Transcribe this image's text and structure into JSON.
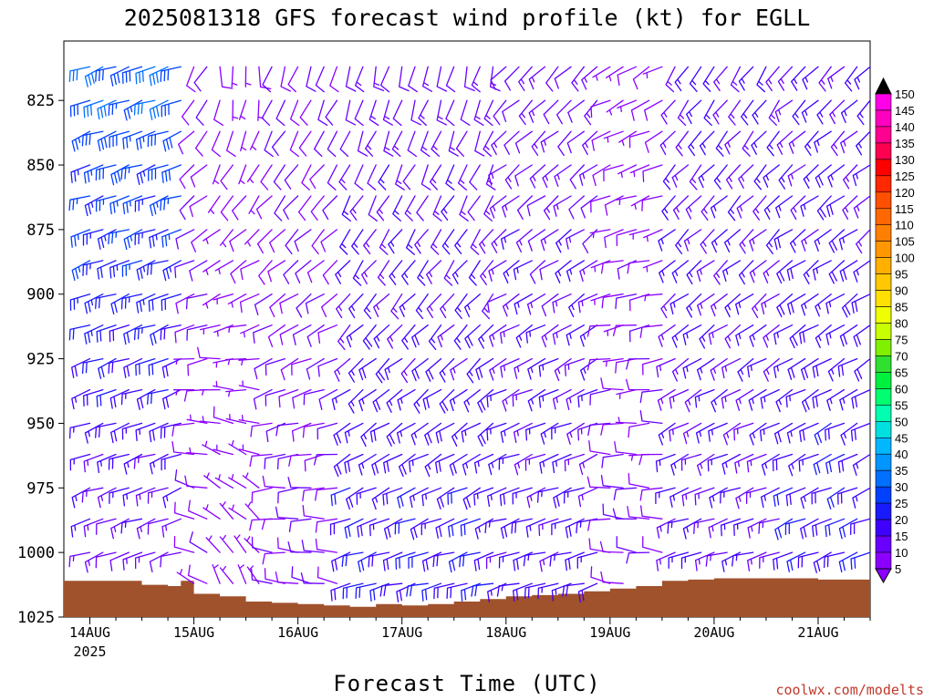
{
  "chart_data": {
    "type": "wind_profile",
    "title": "2025081318 GFS forecast wind profile (kt) for EGLL",
    "xlabel": "Forecast Time (UTC)",
    "ylabel": "",
    "credit": "coolwx.com/modelts",
    "x_ticks": [
      {
        "label": "14AUG",
        "sublabel": "2025",
        "day": 0
      },
      {
        "label": "15AUG",
        "day": 1
      },
      {
        "label": "16AUG",
        "day": 2
      },
      {
        "label": "17AUG",
        "day": 3
      },
      {
        "label": "18AUG",
        "day": 4
      },
      {
        "label": "19AUG",
        "day": 5
      },
      {
        "label": "20AUG",
        "day": 6
      },
      {
        "label": "21AUG",
        "day": 7
      }
    ],
    "xlim_hours": [
      -6,
      180
    ],
    "y_ticks": [
      825,
      850,
      875,
      900,
      925,
      950,
      975,
      1000,
      1025
    ],
    "ylim_hpa": [
      1025,
      802
    ],
    "pressure_levels": [
      1012,
      1000,
      987,
      975,
      962,
      950,
      937,
      925,
      912,
      900,
      887,
      875,
      862,
      850,
      837,
      825,
      812
    ],
    "surface_pressure": {
      "hours": [
        0,
        12,
        18,
        21,
        24,
        30,
        36,
        42,
        48,
        54,
        60,
        66,
        72,
        78,
        84,
        90,
        96,
        102,
        108,
        114,
        120,
        126,
        132,
        138,
        144,
        150,
        156,
        162,
        168,
        174,
        180
      ],
      "hpa": [
        1011,
        1012.5,
        1013,
        1011,
        1016,
        1017,
        1019,
        1019.5,
        1020,
        1020.5,
        1021,
        1020,
        1020.5,
        1020,
        1019,
        1018,
        1017,
        1016.5,
        1016,
        1015,
        1014,
        1013,
        1011,
        1010.5,
        1010,
        1010,
        1010,
        1010,
        1010.5,
        1010.5,
        1011
      ]
    },
    "colorbar": {
      "levels": [
        5,
        10,
        15,
        20,
        25,
        30,
        35,
        40,
        45,
        50,
        55,
        60,
        65,
        70,
        75,
        80,
        85,
        90,
        95,
        100,
        105,
        110,
        115,
        120,
        125,
        130,
        135,
        140,
        145,
        150
      ],
      "colors": [
        "#8b00ff",
        "#6a00ff",
        "#3f00ff",
        "#1a1aff",
        "#0040ff",
        "#0070ff",
        "#0095ff",
        "#00b8ff",
        "#00e0e0",
        "#00ffb0",
        "#00ff70",
        "#00f040",
        "#30e030",
        "#80f000",
        "#c8ff00",
        "#f0ff00",
        "#ffe000",
        "#ffc800",
        "#ffb000",
        "#ff9800",
        "#ff8000",
        "#ff6800",
        "#ff5000",
        "#ff2800",
        "#ff0000",
        "#ff0050",
        "#ff0090",
        "#ff00c0",
        "#ff00e8",
        "#000000"
      ]
    },
    "wind": {
      "units": "kt",
      "step_hours": 3,
      "hours_start": 0,
      "hours_end": 180,
      "regimes": [
        {
          "from_h": 0,
          "to_h": 22,
          "dir_low": 250,
          "dir_high": 250,
          "spd_low": 12,
          "spd_high": 30
        },
        {
          "from_h": 22,
          "to_h": 30,
          "dir_low": 300,
          "dir_high": 210,
          "spd_low": 8,
          "spd_high": 10
        },
        {
          "from_h": 30,
          "to_h": 42,
          "dir_low": 330,
          "dir_high": 180,
          "spd_low": 5,
          "spd_high": 7
        },
        {
          "from_h": 42,
          "to_h": 60,
          "dir_low": 280,
          "dir_high": 200,
          "spd_low": 10,
          "spd_high": 10
        },
        {
          "from_h": 60,
          "to_h": 96,
          "dir_low": 255,
          "dir_high": 195,
          "spd_low": 20,
          "spd_high": 12
        },
        {
          "from_h": 96,
          "to_h": 120,
          "dir_low": 255,
          "dir_high": 225,
          "spd_low": 17,
          "spd_high": 12
        },
        {
          "from_h": 120,
          "to_h": 135,
          "dir_low": 280,
          "dir_high": 240,
          "spd_low": 10,
          "spd_high": 7
        },
        {
          "from_h": 135,
          "to_h": 162,
          "dir_low": 255,
          "dir_high": 215,
          "spd_low": 15,
          "spd_high": 15
        },
        {
          "from_h": 162,
          "to_h": 181,
          "dir_low": 250,
          "dir_high": 225,
          "spd_low": 20,
          "spd_high": 15
        }
      ]
    }
  }
}
